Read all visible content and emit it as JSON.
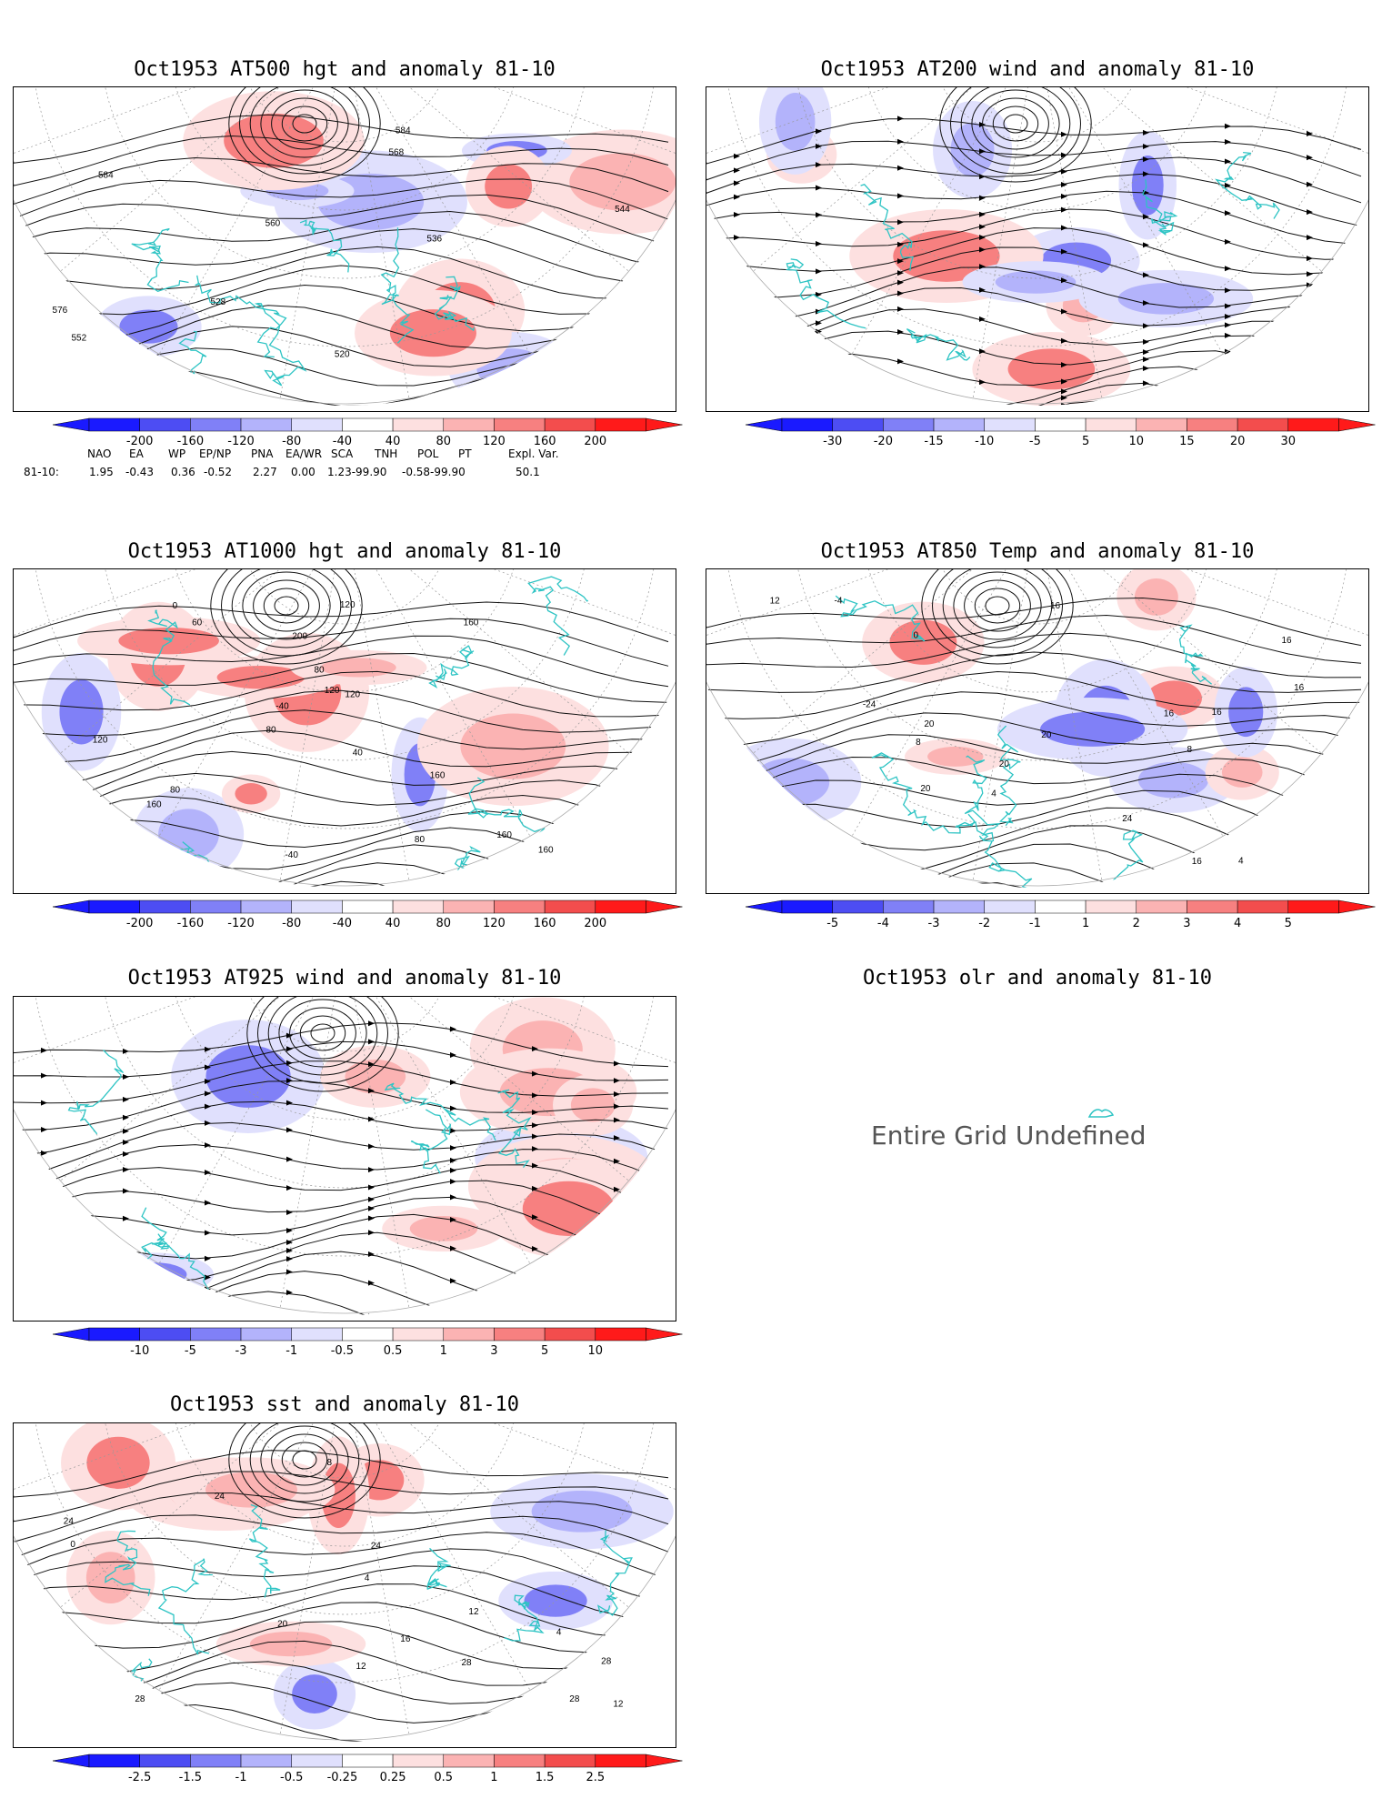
{
  "colors": {
    "coast": "#2ec4c4",
    "contour": "#111111",
    "pos": [
      "#fde0e0",
      "#fbb3b3",
      "#f78080",
      "#f34d4d",
      "#ff1a1a"
    ],
    "neg": [
      "#e0e0fd",
      "#b3b3fb",
      "#8080f7",
      "#4d4df3",
      "#1a1aff"
    ]
  },
  "panels": [
    {
      "id": "p1",
      "title": "Oct1953 AT500 hgt and anomaly 81-10",
      "type": "contour",
      "labels": [
        "584",
        "520",
        "528",
        "536",
        "544",
        "552",
        "560",
        "568",
        "576",
        "584"
      ],
      "cbar": [
        "-200",
        "-160",
        "-120",
        "-80",
        "-40",
        "40",
        "80",
        "120",
        "160",
        "200"
      ]
    },
    {
      "id": "p2",
      "title": "Oct1953 AT200 wind and anomaly 81-10",
      "type": "stream",
      "labels": [],
      "cbar": [
        "-30",
        "-20",
        "-15",
        "-10",
        "-5",
        "5",
        "10",
        "15",
        "20",
        "30"
      ]
    },
    {
      "id": "p3",
      "title": "Oct1953 AT1000 hgt and anomaly 81-10",
      "type": "contour",
      "labels": [
        "160",
        "80",
        "40",
        "120",
        "60",
        "0",
        "-40",
        "-40",
        "80",
        "120",
        "200",
        "160",
        "160",
        "160",
        "120",
        "80",
        "80",
        "120",
        "160"
      ],
      "cbar": [
        "-200",
        "-160",
        "-120",
        "-80",
        "-40",
        "40",
        "80",
        "120",
        "160",
        "200"
      ]
    },
    {
      "id": "p4",
      "title": "Oct1953 AT850 Temp and anomaly 81-10",
      "type": "contour",
      "labels": [
        "20",
        "-24",
        "-4",
        "8",
        "4",
        "0",
        "4",
        "8",
        "20",
        "16",
        "16",
        "16",
        "12",
        "16",
        "20",
        "24",
        "20",
        "16",
        "16"
      ],
      "cbar": [
        "-5",
        "-4",
        "-3",
        "-2",
        "-1",
        "1",
        "2",
        "3",
        "4",
        "5"
      ]
    },
    {
      "id": "p5",
      "title": "Oct1953 AT925 wind and anomaly 81-10",
      "type": "stream",
      "labels": [],
      "cbar": [
        "-10",
        "-5",
        "-3",
        "-1",
        "-0.5",
        "0.5",
        "1",
        "3",
        "5",
        "10"
      ]
    },
    {
      "id": "p6",
      "title": "Oct1953 olr and anomaly 81-10",
      "type": "undefined",
      "message": "Entire Grid Undefined"
    },
    {
      "id": "p7",
      "title": "Oct1953 sst and anomaly 81-10",
      "type": "contour",
      "labels": [
        "24",
        "28",
        "0",
        "4",
        "12",
        "4",
        "8",
        "12",
        "16",
        "20",
        "24",
        "24",
        "28",
        "28",
        "28",
        "12"
      ],
      "cbar": [
        "-2.5",
        "-1.5",
        "-1",
        "-0.5",
        "-0.25",
        "0.25",
        "0.5",
        "1",
        "1.5",
        "2.5"
      ]
    }
  ],
  "teleconnections": {
    "headers": [
      "NAO",
      "EA",
      "WP",
      "EP/NP",
      "PNA",
      "EA/WR",
      "SCA",
      "TNH",
      "POL",
      "PT",
      "Expl. Var."
    ],
    "row_label": "81-10:",
    "values": [
      "1.95",
      "-0.43",
      "0.36",
      "-0.52",
      "2.27",
      "0.00",
      "1.23-99.90",
      "-0.58-99.90",
      "50.1"
    ]
  }
}
